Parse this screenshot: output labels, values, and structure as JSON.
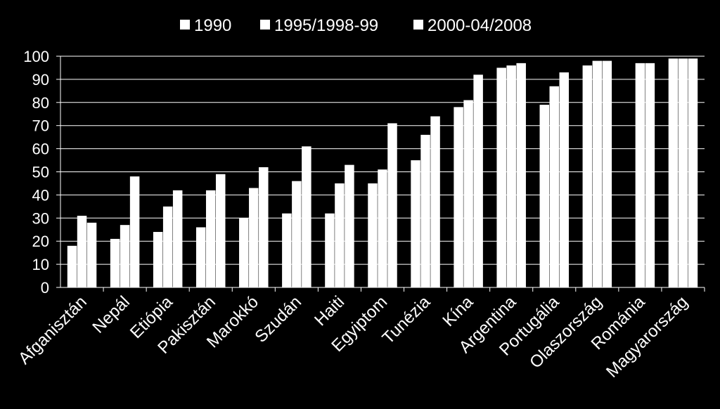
{
  "chart_data": {
    "type": "bar",
    "title": "",
    "xlabel": "",
    "ylabel": "",
    "ylim": [
      0,
      100
    ],
    "yticks": [
      0,
      10,
      20,
      30,
      40,
      50,
      60,
      70,
      80,
      90,
      100
    ],
    "grid": true,
    "legend_position": "top",
    "categories": [
      "Afganisztán",
      "Nepál",
      "Etiópia",
      "Pakisztán",
      "Marokkó",
      "Szudán",
      "Haiti",
      "Egyiptom",
      "Tunézia",
      "Kína",
      "Argentina",
      "Portugália",
      "Olaszország",
      "Románia",
      "Magyarország"
    ],
    "series": [
      {
        "name": "1990",
        "values": [
          18,
          21,
          24,
          26,
          30,
          32,
          32,
          45,
          55,
          78,
          95,
          79,
          96,
          null,
          99
        ]
      },
      {
        "name": "1995/1998-99",
        "values": [
          31,
          27,
          35,
          42,
          43,
          46,
          45,
          51,
          66,
          81,
          96,
          87,
          98,
          97,
          99
        ]
      },
      {
        "name": "2000-04/2008",
        "values": [
          28,
          48,
          42,
          49,
          52,
          61,
          53,
          71,
          74,
          92,
          97,
          93,
          98,
          97,
          99
        ]
      }
    ],
    "colors": {
      "background": "#000000",
      "bars": "#ffffff",
      "text": "#ffffff",
      "grid": "#ffffff"
    }
  }
}
